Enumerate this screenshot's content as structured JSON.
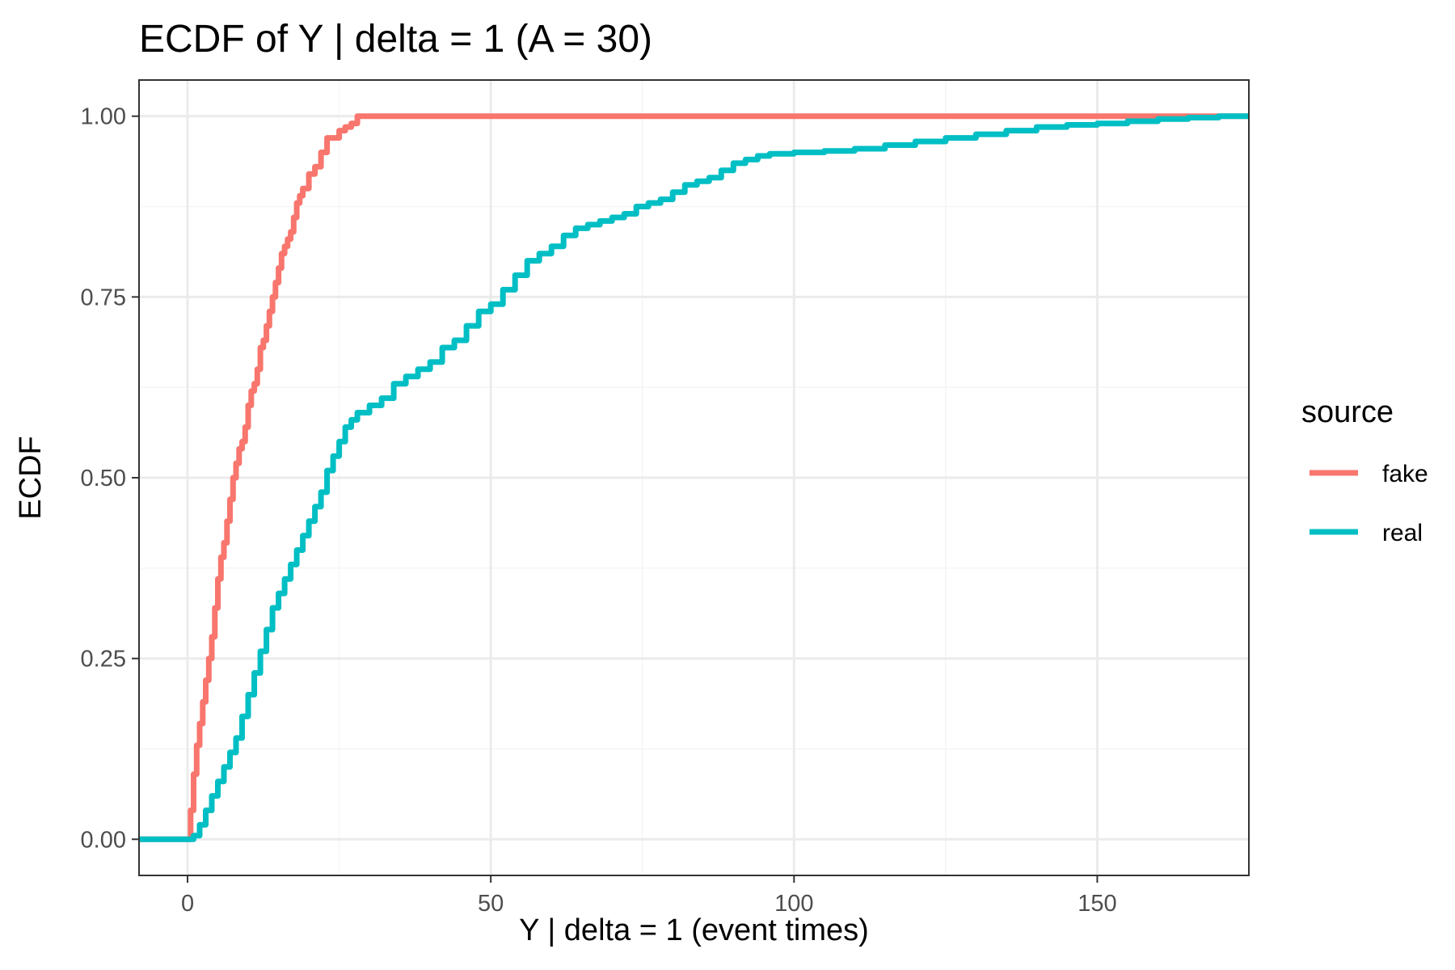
{
  "chart_data": {
    "type": "line",
    "title": "ECDF of Y | delta = 1 (A = 30)",
    "xlabel": "Y | delta = 1 (event times)",
    "ylabel": "ECDF",
    "xlim": [
      -8,
      175
    ],
    "ylim": [
      -0.05,
      1.05
    ],
    "x_ticks": [
      0,
      50,
      100,
      150
    ],
    "y_ticks": [
      0,
      0.25,
      0.5,
      0.75,
      1
    ],
    "x_tick_labels": [
      "0",
      "50",
      "100",
      "150"
    ],
    "y_tick_labels": [
      "0.00",
      "0.25",
      "0.50",
      "0.75",
      "1.00"
    ],
    "grid": true,
    "legend": {
      "title": "source",
      "placement": "right"
    },
    "series": [
      {
        "name": "fake",
        "color": "#F8766D",
        "points": [
          [
            -8,
            0
          ],
          [
            0,
            0
          ],
          [
            0.5,
            0.04
          ],
          [
            1,
            0.09
          ],
          [
            1.5,
            0.13
          ],
          [
            2,
            0.16
          ],
          [
            2.5,
            0.19
          ],
          [
            3,
            0.22
          ],
          [
            3.5,
            0.25
          ],
          [
            4,
            0.28
          ],
          [
            4.5,
            0.32
          ],
          [
            5,
            0.36
          ],
          [
            5.5,
            0.39
          ],
          [
            6,
            0.41
          ],
          [
            6.5,
            0.44
          ],
          [
            7,
            0.47
          ],
          [
            7.5,
            0.5
          ],
          [
            8,
            0.52
          ],
          [
            8.5,
            0.54
          ],
          [
            9,
            0.55
          ],
          [
            9.5,
            0.57
          ],
          [
            10,
            0.6
          ],
          [
            10.5,
            0.62
          ],
          [
            11,
            0.63
          ],
          [
            11.5,
            0.65
          ],
          [
            12,
            0.68
          ],
          [
            12.5,
            0.69
          ],
          [
            13,
            0.71
          ],
          [
            13.5,
            0.73
          ],
          [
            14,
            0.75
          ],
          [
            14.5,
            0.77
          ],
          [
            15,
            0.79
          ],
          [
            15.5,
            0.81
          ],
          [
            16,
            0.82
          ],
          [
            16.5,
            0.83
          ],
          [
            17,
            0.84
          ],
          [
            17.5,
            0.86
          ],
          [
            18,
            0.88
          ],
          [
            18.5,
            0.89
          ],
          [
            19,
            0.9
          ],
          [
            20,
            0.92
          ],
          [
            21,
            0.93
          ],
          [
            22,
            0.95
          ],
          [
            23,
            0.97
          ],
          [
            24,
            0.97
          ],
          [
            25,
            0.98
          ],
          [
            26,
            0.985
          ],
          [
            27,
            0.99
          ],
          [
            28,
            1
          ],
          [
            166,
            1
          ],
          [
            175,
            1
          ]
        ]
      },
      {
        "name": "real",
        "color": "#00BFC4",
        "points": [
          [
            -8,
            0
          ],
          [
            0,
            0
          ],
          [
            1,
            0.005
          ],
          [
            2,
            0.02
          ],
          [
            3,
            0.04
          ],
          [
            4,
            0.06
          ],
          [
            5,
            0.08
          ],
          [
            6,
            0.1
          ],
          [
            7,
            0.12
          ],
          [
            8,
            0.14
          ],
          [
            9,
            0.17
          ],
          [
            10,
            0.2
          ],
          [
            11,
            0.23
          ],
          [
            12,
            0.26
          ],
          [
            13,
            0.29
          ],
          [
            14,
            0.32
          ],
          [
            15,
            0.34
          ],
          [
            16,
            0.36
          ],
          [
            17,
            0.38
          ],
          [
            18,
            0.4
          ],
          [
            19,
            0.42
          ],
          [
            20,
            0.44
          ],
          [
            21,
            0.46
          ],
          [
            22,
            0.48
          ],
          [
            23,
            0.51
          ],
          [
            24,
            0.53
          ],
          [
            25,
            0.55
          ],
          [
            26,
            0.57
          ],
          [
            27,
            0.58
          ],
          [
            28,
            0.59
          ],
          [
            30,
            0.6
          ],
          [
            32,
            0.61
          ],
          [
            34,
            0.63
          ],
          [
            36,
            0.64
          ],
          [
            38,
            0.65
          ],
          [
            40,
            0.66
          ],
          [
            42,
            0.68
          ],
          [
            44,
            0.69
          ],
          [
            46,
            0.71
          ],
          [
            48,
            0.73
          ],
          [
            50,
            0.74
          ],
          [
            52,
            0.76
          ],
          [
            54,
            0.78
          ],
          [
            56,
            0.8
          ],
          [
            58,
            0.81
          ],
          [
            60,
            0.82
          ],
          [
            62,
            0.835
          ],
          [
            64,
            0.845
          ],
          [
            66,
            0.85
          ],
          [
            68,
            0.855
          ],
          [
            70,
            0.86
          ],
          [
            72,
            0.865
          ],
          [
            74,
            0.875
          ],
          [
            76,
            0.88
          ],
          [
            78,
            0.885
          ],
          [
            80,
            0.895
          ],
          [
            82,
            0.905
          ],
          [
            84,
            0.91
          ],
          [
            86,
            0.915
          ],
          [
            88,
            0.925
          ],
          [
            90,
            0.935
          ],
          [
            92,
            0.94
          ],
          [
            94,
            0.945
          ],
          [
            96,
            0.948
          ],
          [
            100,
            0.95
          ],
          [
            105,
            0.952
          ],
          [
            110,
            0.955
          ],
          [
            115,
            0.96
          ],
          [
            120,
            0.965
          ],
          [
            125,
            0.97
          ],
          [
            130,
            0.975
          ],
          [
            135,
            0.98
          ],
          [
            140,
            0.985
          ],
          [
            145,
            0.988
          ],
          [
            150,
            0.99
          ],
          [
            155,
            0.993
          ],
          [
            160,
            0.996
          ],
          [
            165,
            0.998
          ],
          [
            170,
            1
          ],
          [
            175,
            1
          ]
        ]
      }
    ]
  },
  "colors": {
    "panel_border": "#333333",
    "grid_major": "#EBEBEB",
    "grid_minor": "#F5F5F5",
    "tick_label": "#4D4D4D"
  }
}
